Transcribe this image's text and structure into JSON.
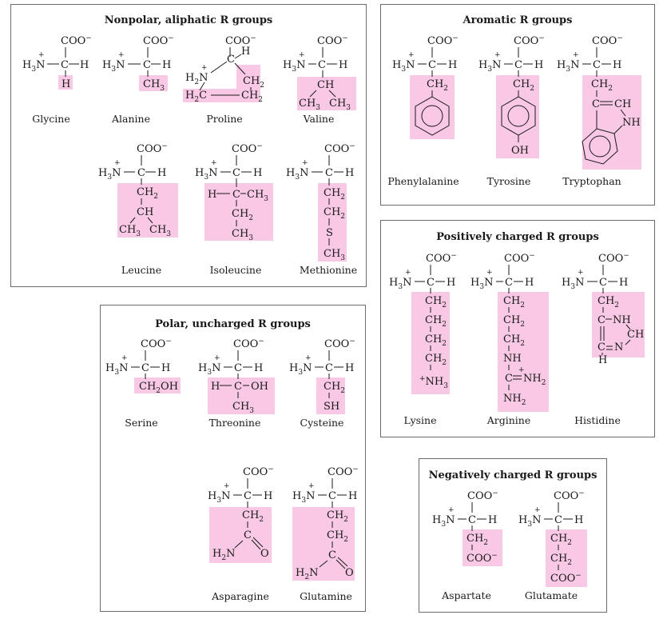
{
  "panels": {
    "nonpolar": {
      "title": "Nonpolar, aliphatic R groups",
      "names": {
        "glycine": "Glycine",
        "alanine": "Alanine",
        "proline": "Proline",
        "valine": "Valine",
        "leucine": "Leucine",
        "isoleucine": "Isoleucine",
        "methionine": "Methionine"
      }
    },
    "aromatic": {
      "title": "Aromatic R groups",
      "names": {
        "phenylalanine": "Phenylalanine",
        "tyrosine": "Tyrosine",
        "tryptophan": "Tryptophan"
      }
    },
    "positive": {
      "title": "Positively charged R groups",
      "names": {
        "lysine": "Lysine",
        "arginine": "Arginine",
        "histidine": "Histidine"
      }
    },
    "polar": {
      "title": "Polar, uncharged R groups",
      "names": {
        "serine": "Serine",
        "threonine": "Threonine",
        "cysteine": "Cysteine",
        "asparagine": "Asparagine",
        "glutamine": "Glutamine"
      }
    },
    "negative": {
      "title": "Negatively charged R groups",
      "names": {
        "aspartate": "Aspartate",
        "glutamate": "Glutamate"
      }
    }
  },
  "highlight_color": "#f8c8e4"
}
